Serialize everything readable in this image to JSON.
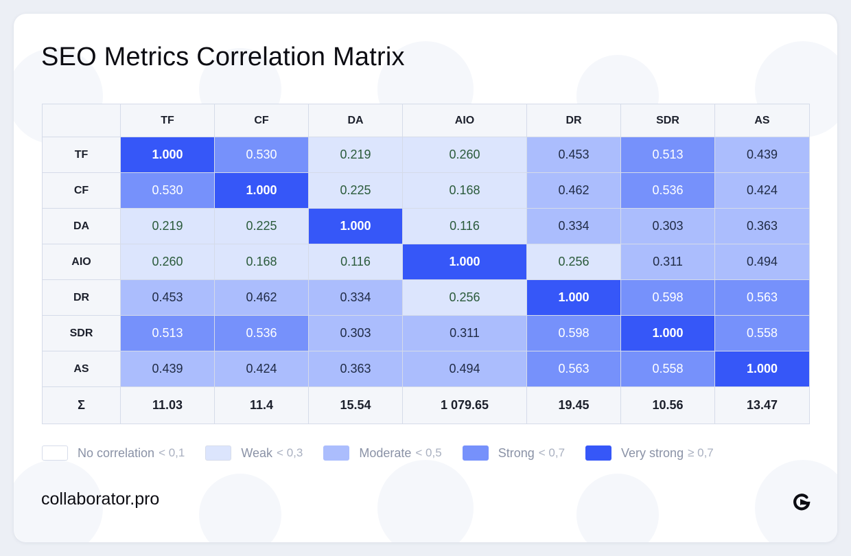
{
  "title": "SEO Metrics Correlation Matrix",
  "brand": {
    "text": "collaborator.pro",
    "logo_icon": "collaborator-logo-icon"
  },
  "chart_data": {
    "type": "heatmap",
    "title": "SEO Metrics Correlation Matrix",
    "columns": [
      "TF",
      "CF",
      "DA",
      "AIO",
      "DR",
      "SDR",
      "AS"
    ],
    "rows": [
      "TF",
      "CF",
      "DA",
      "AIO",
      "DR",
      "SDR",
      "AS"
    ],
    "values": [
      [
        "1.000",
        "0.530",
        "0.219",
        "0.260",
        "0.453",
        "0.513",
        "0.439"
      ],
      [
        "0.530",
        "1.000",
        "0.225",
        "0.168",
        "0.462",
        "0.536",
        "0.424"
      ],
      [
        "0.219",
        "0.225",
        "1.000",
        "0.116",
        "0.334",
        "0.303",
        "0.363"
      ],
      [
        "0.260",
        "0.168",
        "0.116",
        "1.000",
        "0.256",
        "0.311",
        "0.494"
      ],
      [
        "0.453",
        "0.462",
        "0.334",
        "0.256",
        "1.000",
        "0.598",
        "0.563"
      ],
      [
        "0.513",
        "0.536",
        "0.303",
        "0.311",
        "0.598",
        "1.000",
        "0.558"
      ],
      [
        "0.439",
        "0.424",
        "0.363",
        "0.494",
        "0.563",
        "0.558",
        "1.000"
      ]
    ],
    "sum_label": "Σ",
    "sums": [
      "11.03",
      "11.4",
      "15.54",
      "1 079.65",
      "19.45",
      "10.56",
      "13.47"
    ],
    "legend": [
      {
        "label": "No correlation",
        "threshold": "< 0,1",
        "max": 0.1,
        "color": "#ffffff"
      },
      {
        "label": "Weak",
        "threshold": "< 0,3",
        "max": 0.3,
        "color": "#dce5fd"
      },
      {
        "label": "Moderate",
        "threshold": "< 0,5",
        "max": 0.5,
        "color": "#abbdfd"
      },
      {
        "label": "Strong",
        "threshold": "< 0,7",
        "max": 0.7,
        "color": "#7691fb"
      },
      {
        "label": "Very strong",
        "threshold": "≥ 0,7",
        "max": 1.01,
        "color": "#3657f8"
      }
    ]
  }
}
